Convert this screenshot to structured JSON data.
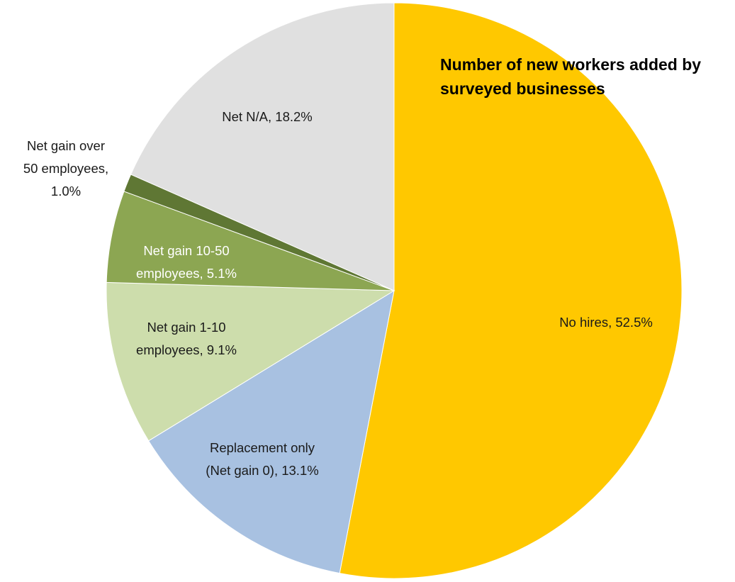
{
  "chart_data": {
    "type": "pie",
    "title": "Number of new workers added by surveyed businesses",
    "start_angle_deg": 0,
    "direction": "clockwise",
    "slices": [
      {
        "name": "No hires",
        "value": 52.5,
        "color": "#FFC800",
        "label": [
          "No hires, 52.5%"
        ],
        "label_color": "#1a1a1a"
      },
      {
        "name": "Replacement only (Net gain 0)",
        "value": 13.1,
        "color": "#A8C1E1",
        "label": [
          "Replacement only",
          "(Net gain 0), 13.1%"
        ],
        "label_color": "#1a1a1a"
      },
      {
        "name": "Net gain 1-10 employees",
        "value": 9.1,
        "color": "#CDDDAC",
        "label": [
          "Net gain 1-10",
          "employees, 9.1%"
        ],
        "label_color": "#1a1a1a"
      },
      {
        "name": "Net gain 10-50 employees",
        "value": 5.1,
        "color": "#8CA652",
        "label": [
          "Net gain 10-50",
          "employees, 5.1%"
        ],
        "label_color": "#ffffff"
      },
      {
        "name": "Net gain over 50 employees",
        "value": 1.0,
        "color": "#5F7734",
        "label": [
          "Net gain over",
          "50 employees,",
          "1.0%"
        ],
        "label_color": "#1a1a1a"
      },
      {
        "name": "Net N/A",
        "value": 18.2,
        "color": "#E0E0E0",
        "label": [
          "Net N/A, 18.2%"
        ],
        "label_color": "#1a1a1a"
      }
    ]
  }
}
